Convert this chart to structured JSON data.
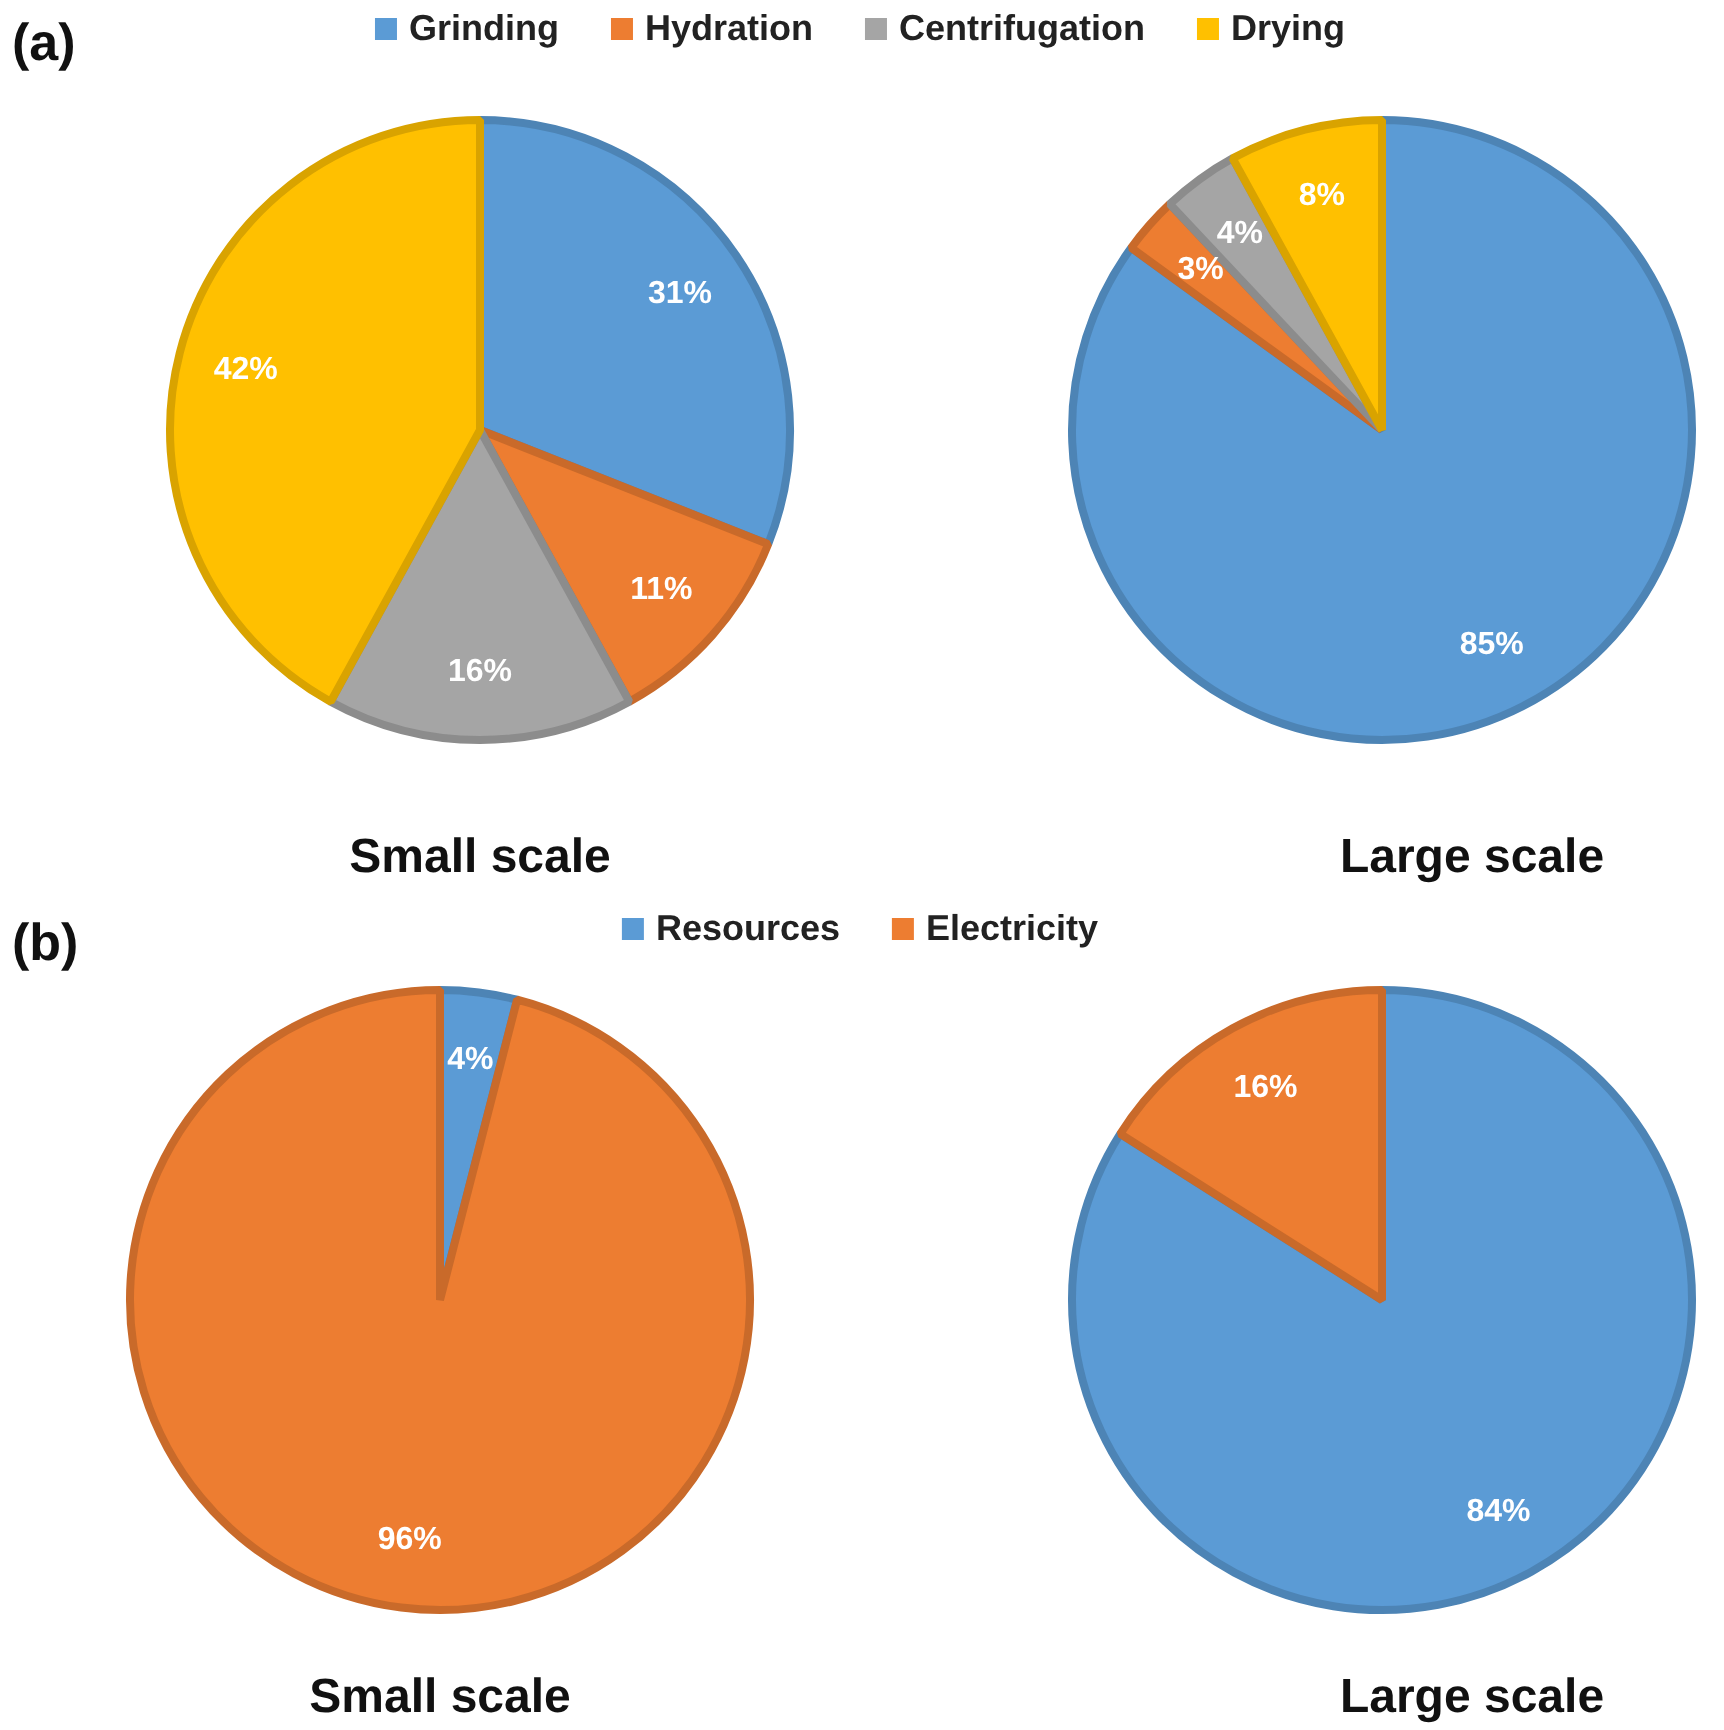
{
  "chart_data": [
    {
      "type": "pie",
      "title": "Small scale",
      "annotations": [
        "(a)"
      ],
      "legend": "top",
      "categories": [
        "Grinding",
        "Hydration",
        "Centrifugation",
        "Drying"
      ],
      "values": [
        31,
        11,
        16,
        42
      ],
      "value_labels": [
        "31%",
        "11%",
        "16%",
        "42%"
      ],
      "colors": [
        "#5b9bd5",
        "#ed7d31",
        "#a5a5a5",
        "#ffc000"
      ]
    },
    {
      "type": "pie",
      "title": "Large scale",
      "categories": [
        null,
        null,
        null,
        null
      ],
      "values": [
        85,
        3,
        4,
        8
      ],
      "value_labels": [
        "85%",
        "3%",
        "4%",
        "8%"
      ],
      "colors": [
        "#5b9bd5",
        "#ed7d31",
        "#a5a5a5",
        "#ffc000"
      ]
    },
    {
      "type": "pie",
      "title": "Small scale",
      "annotations": [
        "(b)"
      ],
      "legend": "top",
      "categories": [
        "Resources",
        "Electricity"
      ],
      "values": [
        4,
        96
      ],
      "value_labels": [
        "4%",
        "96%"
      ],
      "colors": [
        "#5b9bd5",
        "#ed7d31"
      ]
    },
    {
      "type": "pie",
      "title": "Large scale",
      "categories": [
        null,
        null
      ],
      "values": [
        84,
        16
      ],
      "value_labels": [
        "84%",
        "16%"
      ],
      "colors": [
        "#5b9bd5",
        "#ed7d31"
      ]
    }
  ]
}
